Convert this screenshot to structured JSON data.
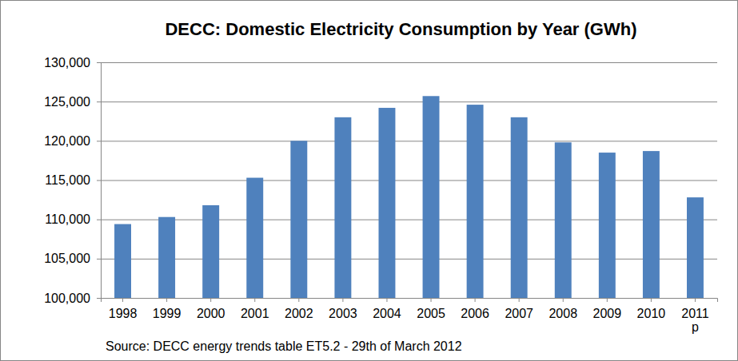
{
  "chart_data": {
    "type": "bar",
    "title": "DECC: Domestic Electricity Consumption by Year (GWh)",
    "annotation": "Source: DECC energy trends table ET5.2 - 29th of March 2012",
    "categories": [
      "1998",
      "1999",
      "2000",
      "2001",
      "2002",
      "2003",
      "2004",
      "2005",
      "2006",
      "2007",
      "2008",
      "2009",
      "2010",
      "2011 p"
    ],
    "values": [
      109400,
      110300,
      111800,
      115300,
      120000,
      123000,
      124200,
      125700,
      124600,
      123000,
      119800,
      118500,
      118700,
      112800
    ],
    "color": "#4f81bd",
    "ylim": [
      100000,
      130000
    ],
    "yticks": [
      {
        "value": 100000,
        "label": "100,000"
      },
      {
        "value": 105000,
        "label": "105,000"
      },
      {
        "value": 110000,
        "label": "110,000"
      },
      {
        "value": 115000,
        "label": "115,000"
      },
      {
        "value": 120000,
        "label": "120,000"
      },
      {
        "value": 125000,
        "label": "125,000"
      },
      {
        "value": 130000,
        "label": "130,000"
      }
    ],
    "grid": true
  }
}
